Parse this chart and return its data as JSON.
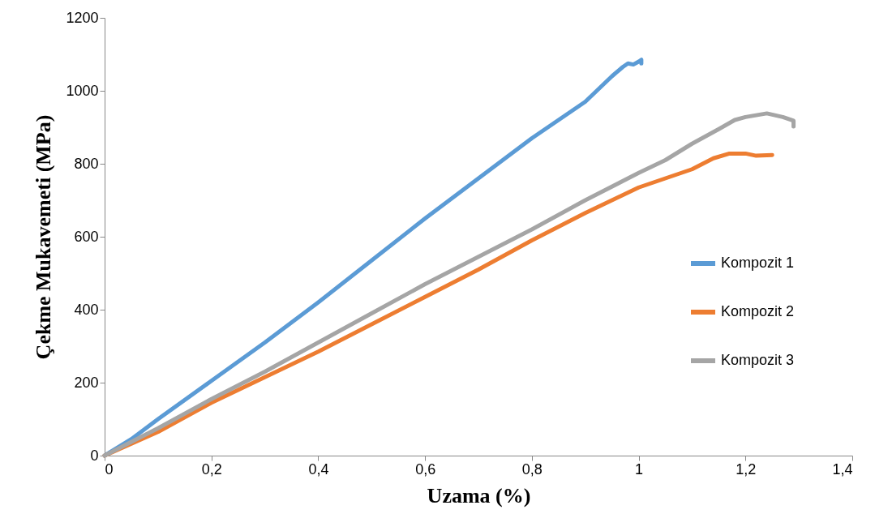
{
  "chart_data": {
    "type": "line",
    "xlabel": "Uzama (%)",
    "ylabel": "Çekme Mukavemeti (MPa)",
    "xlim": [
      0,
      1.4
    ],
    "ylim": [
      0,
      1200
    ],
    "xticks": [
      0,
      {
        "value": 0.2,
        "label": "0,2"
      },
      {
        "value": 0.4,
        "label": "0,4"
      },
      {
        "value": 0.6,
        "label": "0,6"
      },
      {
        "value": 0.8,
        "label": "0,8"
      },
      1,
      {
        "value": 1.2,
        "label": "1,2"
      },
      {
        "value": 1.4,
        "label": "1,4"
      }
    ],
    "yticks": [
      0,
      200,
      400,
      600,
      800,
      1000,
      1200
    ],
    "grid": false,
    "legend": "right",
    "marker": "none",
    "line_style": "solid",
    "series": [
      {
        "name": "Kompozit 1",
        "color": "#5b9bd5",
        "x": [
          0,
          0.05,
          0.1,
          0.2,
          0.3,
          0.4,
          0.5,
          0.6,
          0.7,
          0.8,
          0.9,
          0.95,
          0.97,
          0.98,
          0.99,
          1.0,
          1.005,
          1.005
        ],
        "values": [
          0,
          45,
          100,
          205,
          310,
          420,
          535,
          650,
          760,
          870,
          970,
          1040,
          1065,
          1075,
          1072,
          1080,
          1085,
          1075
        ]
      },
      {
        "name": "Kompozit 2",
        "color": "#ed7d31",
        "x": [
          0,
          0.1,
          0.2,
          0.3,
          0.4,
          0.5,
          0.6,
          0.7,
          0.8,
          0.9,
          1.0,
          1.05,
          1.1,
          1.14,
          1.17,
          1.2,
          1.22,
          1.25
        ],
        "values": [
          0,
          65,
          145,
          215,
          285,
          360,
          435,
          510,
          590,
          665,
          735,
          760,
          785,
          815,
          828,
          828,
          822,
          824
        ]
      },
      {
        "name": "Kompozit 3",
        "color": "#a5a5a5",
        "x": [
          0,
          0.1,
          0.2,
          0.3,
          0.4,
          0.5,
          0.6,
          0.7,
          0.8,
          0.9,
          1.0,
          1.05,
          1.1,
          1.15,
          1.18,
          1.2,
          1.24,
          1.27,
          1.29,
          1.29
        ],
        "values": [
          0,
          75,
          155,
          230,
          310,
          390,
          470,
          545,
          620,
          700,
          775,
          810,
          855,
          895,
          920,
          928,
          938,
          928,
          918,
          902
        ]
      }
    ]
  }
}
